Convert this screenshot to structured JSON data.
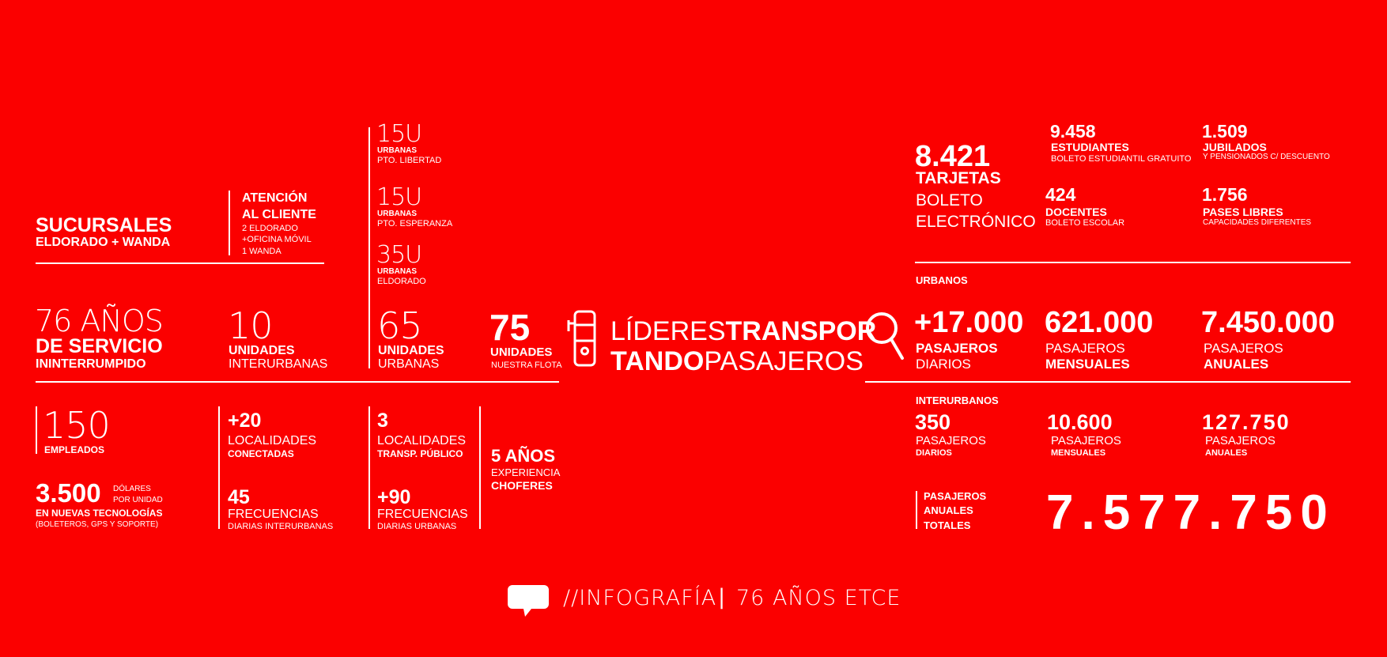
{
  "sucursales": {
    "title": "SUCURSALES",
    "sub": "ELDORADO + WANDA"
  },
  "atencion": {
    "l1": "ATENCIÓN",
    "l2": "AL CLIENTE",
    "d1": "2 ELDORADO",
    "d2": "+OFICINA MÓVIL",
    "d3": "1 WANDA"
  },
  "urb1": {
    "num": "15U",
    "l1": "URBANAS",
    "l2": "PTO. LIBERTAD"
  },
  "urb2": {
    "num": "15U",
    "l1": "URBANAS",
    "l2": "PTO. ESPERANZA"
  },
  "urb3": {
    "num": "35U",
    "l1": "URBANAS",
    "l2": "ELDORADO"
  },
  "anios": {
    "num": "76 AÑOS",
    "l1": "DE SERVICIO",
    "l2": "ININTERRUMPIDO"
  },
  "interurbanas_units": {
    "num": "10",
    "l1": "UNIDADES",
    "l2": "INTERURBANAS"
  },
  "urbanas_units": {
    "num": "65",
    "l1": "UNIDADES",
    "l2": "URBANAS"
  },
  "flota": {
    "num": "75",
    "l1": "UNIDADES",
    "l2": "NUESTRA FLOTA"
  },
  "empleados": {
    "num": "150",
    "label": "EMPLEADOS"
  },
  "tecnologia": {
    "num": "3.500",
    "u1": "DÓLARES",
    "u2": "POR UNIDAD",
    "l1": "EN NUEVAS TECNOLOGÍAS",
    "l2": "(BOLETEROS, GPS Y SOPORTE)"
  },
  "localidades_con": {
    "num": "+20",
    "l1": "LOCALIDADES",
    "l2": "CONECTADAS"
  },
  "frecuencias_inter": {
    "num": "45",
    "l1": "FRECUENCIAS",
    "l2": "DIARIAS INTERURBANAS"
  },
  "localidades_tp": {
    "num": "3",
    "l1": "LOCALIDADES",
    "l2": "TRANSP. PÚBLICO"
  },
  "frecuencias_urb": {
    "num": "+90",
    "l1": "FRECUENCIAS",
    "l2": "DIARIAS URBANAS"
  },
  "experiencia": {
    "num": "5 AÑOS",
    "l1": "EXPERIENCIA",
    "l2": "CHOFERES"
  },
  "center": {
    "w1": "LÍDERES",
    "w2": "TRANSPOR",
    "w3": "TANDO",
    "w4": "PASAJEROS"
  },
  "tarjetas": {
    "num": "8.421",
    "l1": "TARJETAS",
    "l2": "BOLETO",
    "l3": "ELECTRÓNICO"
  },
  "estudiantes": {
    "num": "9.458",
    "l1": "ESTUDIANTES",
    "l2": "BOLETO ESTUDIANTIL GRATUITO"
  },
  "jubilados": {
    "num": "1.509",
    "l1": "JUBILADOS",
    "l2": "Y PENSIONADOS C/ DESCUENTO"
  },
  "docentes": {
    "num": "424",
    "l1": "DOCENTES",
    "l2": "BOLETO ESCOLAR"
  },
  "pases": {
    "num": "1.756",
    "l1": "PASES LIBRES",
    "l2": "CAPACIDADES DIFERENTES"
  },
  "urbanos": {
    "heading": "URBANOS",
    "diarios": {
      "num": "+17.000",
      "l1": "PASAJEROS",
      "l2": "DIARIOS"
    },
    "mensuales": {
      "num": "621.000",
      "l1": "PASAJEROS",
      "l2": "MENSUALES"
    },
    "anuales": {
      "num": "7.450.000",
      "l1": "PASAJEROS",
      "l2": "ANUALES"
    }
  },
  "interurbanos": {
    "heading": "INTERURBANOS",
    "diarios": {
      "num": "350",
      "l1": "PASAJEROS",
      "l2": "DIARIOS"
    },
    "mensuales": {
      "num": "10.600",
      "l1": "PASAJEROS",
      "l2": "MENSUALES"
    },
    "anuales": {
      "num": "127.750",
      "l1": "PASAJEROS",
      "l2": "ANUALES"
    }
  },
  "totales": {
    "l1": "PASAJEROS",
    "l2": "ANUALES",
    "l3": "TOTALES",
    "num": "7.577.750"
  },
  "footer": {
    "text": "//INFOGRAFÍA",
    "sep": "|",
    "sub": "76 AÑOS ETCE"
  },
  "icons": {
    "bus": "bus-icon",
    "search": "search-icon",
    "chat": "chat-bubble-icon"
  },
  "colors": {
    "background": "#fb0000",
    "foreground": "#ffffff"
  }
}
